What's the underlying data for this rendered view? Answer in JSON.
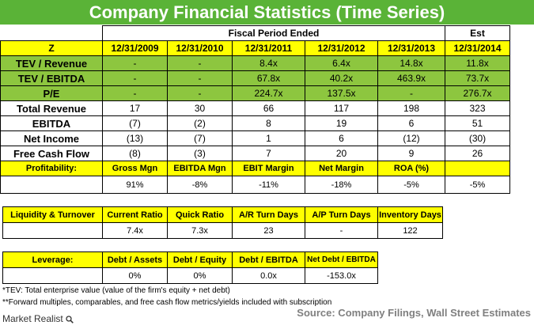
{
  "title": "Company Financial Statistics (Time Series)",
  "fiscal_header": "Fiscal Period Ended",
  "est_header": "Est",
  "corner": "Z",
  "periods": [
    "12/31/2009",
    "12/31/2010",
    "12/31/2011",
    "12/31/2012",
    "12/31/2013",
    "12/31/2014"
  ],
  "multiples": [
    {
      "label": "TEV / Revenue",
      "values": [
        "-",
        "-",
        "8.4x",
        "6.4x",
        "14.8x",
        "11.8x"
      ]
    },
    {
      "label": "TEV / EBITDA",
      "values": [
        "-",
        "-",
        "67.8x",
        "40.2x",
        "463.9x",
        "73.7x"
      ]
    },
    {
      "label": "P/E",
      "values": [
        "-",
        "-",
        "224.7x",
        "137.5x",
        "-",
        "276.7x"
      ]
    }
  ],
  "financials": [
    {
      "label": "Total Revenue",
      "values": [
        "17",
        "30",
        "66",
        "117",
        "198",
        "323"
      ]
    },
    {
      "label": "EBITDA",
      "values": [
        "(7)",
        "(2)",
        "8",
        "19",
        "6",
        "51"
      ]
    },
    {
      "label": "Net Income",
      "values": [
        "(13)",
        "(7)",
        "1",
        "6",
        "(12)",
        "(30)"
      ]
    },
    {
      "label": "Free Cash Flow",
      "values": [
        "(8)",
        "(3)",
        "7",
        "20",
        "9",
        "26"
      ]
    }
  ],
  "profitability": {
    "label": "Profitability:",
    "headers": [
      "Gross Mgn",
      "EBITDA Mgn",
      "EBIT Margin",
      "Net Margin",
      "ROA (%)",
      ""
    ],
    "values": [
      "91%",
      "-8%",
      "-11%",
      "-18%",
      "-5%",
      "-5%"
    ]
  },
  "liquidity": {
    "label": "Liquidity & Turnover",
    "headers": [
      "Current Ratio",
      "Quick Ratio",
      "A/R Turn Days",
      "A/P Turn Days",
      "Inventory Days"
    ],
    "values": [
      "7.4x",
      "7.3x",
      "23",
      "-",
      "122"
    ]
  },
  "leverage": {
    "label": "Leverage:",
    "headers": [
      "Debt / Assets",
      "Debt / Equity",
      "Debt / EBITDA",
      "Net Debt / EBITDA"
    ],
    "values": [
      "0%",
      "0%",
      "0.0x",
      "-153.0x"
    ]
  },
  "footnotes": [
    "*TEV: Total enterprise value (value of the firm's equity + net debt)",
    "**Forward multiples, comparables, and free cash flow metrics/yields included with subscription"
  ],
  "source": "Source: Company Filings, Wall Street Estimates",
  "logo_text": "Market Realist",
  "colors": {
    "title_green": "#5ab337",
    "cell_green": "#8dc63f",
    "header_yellow": "#ffff00"
  }
}
